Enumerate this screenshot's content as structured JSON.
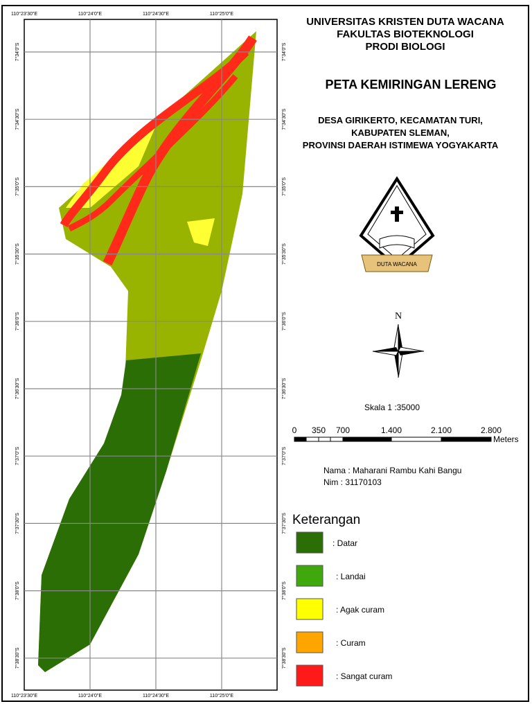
{
  "header": {
    "lines": [
      "UNIVERSITAS KRISTEN DUTA WACANA",
      "FAKULTAS BIOTEKNOLOGI",
      "PRODI BIOLOGI"
    ],
    "title": "PETA KEMIRINGAN LERENG",
    "location": [
      "DESA GIRIKERTO, KECAMATAN TURI,",
      "KABUPATEN SLEMAN,",
      "PROVINSI DAERAH ISTIMEWA YOGYAKARTA"
    ]
  },
  "logo": {
    "text": "DUTA WACANA"
  },
  "north": "N",
  "scale": {
    "text": "Skala 1 :35000",
    "labels": [
      "0",
      "350",
      "700",
      "1.400",
      "2.100",
      "2.800"
    ],
    "unit": "Meters"
  },
  "author": {
    "name": "Nama : Maharani Rambu Kahi Bangu",
    "nim": "Nim    : 31170103"
  },
  "coords": {
    "lon": [
      "110°23'30\"E",
      "110°24'0\"E",
      "110°24'30\"E",
      "110°25'0\"E"
    ],
    "lat": [
      "7°34'0\"S",
      "7°34'30\"S",
      "7°35'0\"S",
      "7°35'30\"S",
      "7°36'0\"S",
      "7°36'30\"S",
      "7°37'0\"S",
      "7°37'30\"S",
      "7°38'0\"S",
      "7°38'30\"S"
    ]
  },
  "legend": {
    "title": "Keterangan",
    "items": [
      {
        "label": ": Datar",
        "color": "#2b6e06"
      },
      {
        "label": ": Landai",
        "color": "#3fa80c"
      },
      {
        "label": ": Agak curam",
        "color": "#ffff00"
      },
      {
        "label": ": Curam",
        "color": "#ffa500"
      },
      {
        "label": ": Sangat curam",
        "color": "#ff1a1a"
      }
    ]
  }
}
